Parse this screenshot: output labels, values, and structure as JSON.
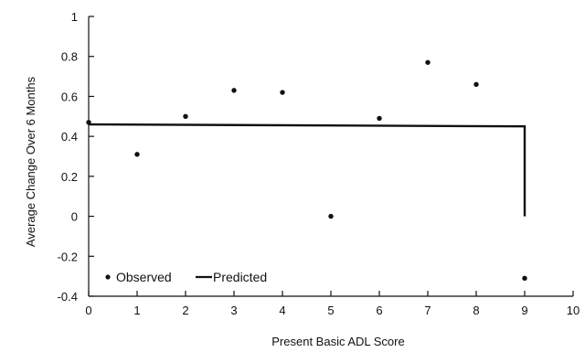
{
  "chart_data": {
    "type": "scatter",
    "xlabel": "Present Basic ADL Score",
    "ylabel": "Average Change Over 6 Months",
    "xlim": [
      0,
      10
    ],
    "ylim": [
      -0.4,
      1.0
    ],
    "x_ticks": [
      "0",
      "1",
      "2",
      "3",
      "4",
      "5",
      "6",
      "7",
      "8",
      "9",
      "10"
    ],
    "y_ticks": [
      "1",
      "0.8",
      "0.6",
      "0.4",
      "0.2",
      "0",
      "-0.2",
      "-0.4"
    ],
    "y_tick_values": [
      1,
      0.8,
      0.6,
      0.4,
      0.2,
      0,
      -0.2,
      -0.4
    ],
    "legend_position": "bottom-left",
    "series": [
      {
        "name": "Observed",
        "kind": "points",
        "color": "#111111",
        "x": [
          0,
          1,
          2,
          3,
          4,
          5,
          6,
          7,
          8,
          9
        ],
        "y": [
          0.47,
          0.31,
          0.5,
          0.63,
          0.62,
          0.0,
          0.49,
          0.77,
          0.66,
          -0.31
        ]
      },
      {
        "name": "Predicted",
        "kind": "line",
        "color": "#111111",
        "x": [
          0,
          9,
          9
        ],
        "y": [
          0.46,
          0.45,
          0.0
        ]
      }
    ]
  }
}
